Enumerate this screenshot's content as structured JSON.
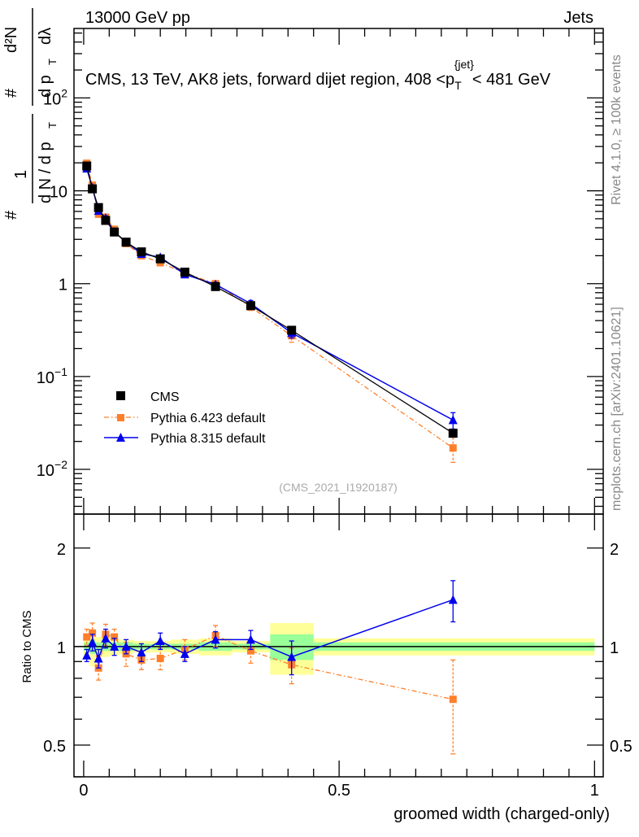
{
  "header": {
    "left": "13000 GeV pp",
    "right": "Jets"
  },
  "side_text": {
    "rivet": "Rivet 4.1.0, ≥ 100k events",
    "mcplots": "mcplots.cern.ch [arXiv:2401.10621]"
  },
  "watermark": "(CMS_2021_I1920187)",
  "colors": {
    "cms": "#000000",
    "py6": "#ff7f2a",
    "py8": "#0000ee",
    "band_inner": "#99ff99",
    "band_outer": "#ffff99"
  },
  "chart_data": [
    {
      "type": "line",
      "panel": "main",
      "title": "CMS, 13 TeV, AK8 jets, forward dijet region, 408 <p_T^{jet}< 481 GeV",
      "title_parts": {
        "main": "CMS, 13 TeV, AK8 jets, forward dijet region, 408 <p",
        "sub": "T",
        "sup": "{jet}",
        "tail": "< 481 GeV"
      },
      "ylabel": "1/(dN/dp_T) d²N/(dp_T dλ)",
      "ylabel_parts": {
        "num1": "1",
        "den1": "d N / d p",
        "num2": "d²N",
        "den2": "d p",
        "lam": "dλ",
        "T": "T",
        "hash": "#"
      },
      "yscale": "log",
      "ylim": [
        0.0033,
        560
      ],
      "xlim": [
        -0.019,
        1.017
      ],
      "yticks": [
        {
          "v": 0.01,
          "base": "10",
          "exp": "−2"
        },
        {
          "v": 0.1,
          "base": "10",
          "exp": "−1"
        },
        {
          "v": 1,
          "base": "1",
          "exp": ""
        },
        {
          "v": 10,
          "base": "10",
          "exp": ""
        },
        {
          "v": 100,
          "base": "10",
          "exp": "2"
        }
      ],
      "x": [
        0.006,
        0.017,
        0.029,
        0.043,
        0.06,
        0.083,
        0.113,
        0.15,
        0.198,
        0.258,
        0.327,
        0.407,
        0.723
      ],
      "series": [
        {
          "name": "CMS",
          "key": "cms",
          "values": [
            18.5,
            10.5,
            6.6,
            4.8,
            3.6,
            2.8,
            2.2,
            1.85,
            1.33,
            0.93,
            0.58,
            0.315,
            0.0245
          ]
        },
        {
          "name": "Pythia 6.423 default",
          "key": "py6",
          "values": [
            19.8,
            11.5,
            5.6,
            5.2,
            3.85,
            2.7,
            2.0,
            1.68,
            1.3,
            1.0,
            0.56,
            0.275,
            0.017
          ],
          "rel_err": [
            0.05,
            0.05,
            0.06,
            0.05,
            0.05,
            0.05,
            0.05,
            0.05,
            0.05,
            0.05,
            0.08,
            0.15,
            0.3
          ]
        },
        {
          "name": "Pythia 8.315 default",
          "key": "py8",
          "values": [
            17.4,
            10.8,
            6.1,
            5.1,
            3.6,
            2.8,
            2.1,
            1.92,
            1.26,
            0.98,
            0.61,
            0.295,
            0.034
          ],
          "rel_err": [
            0.04,
            0.04,
            0.05,
            0.05,
            0.05,
            0.05,
            0.05,
            0.05,
            0.05,
            0.05,
            0.08,
            0.12,
            0.2
          ]
        }
      ],
      "legend": {
        "placement": "center-left",
        "entries": [
          "CMS",
          "Pythia 6.423 default",
          "Pythia 8.315 default"
        ]
      }
    },
    {
      "type": "line",
      "panel": "ratio",
      "ylabel": "Ratio to CMS",
      "xlabel": "groomed width (charged-only)",
      "yscale": "log",
      "ylim": [
        0.4,
        2.54
      ],
      "yticks": [
        {
          "v": 0.5,
          "label": "0.5"
        },
        {
          "v": 1,
          "label": "1"
        },
        {
          "v": 2,
          "label": "2"
        }
      ],
      "xticks": [
        {
          "v": 0,
          "label": "0"
        },
        {
          "v": 0.5,
          "label": "0.5"
        },
        {
          "v": 1,
          "label": "1"
        }
      ],
      "bin_edges": [
        0,
        0.012,
        0.023,
        0.036,
        0.051,
        0.07,
        0.097,
        0.13,
        0.17,
        0.226,
        0.29,
        0.365,
        0.45,
        1.0
      ],
      "band_inner": [
        0.03,
        0.05,
        0.03,
        0.03,
        0.03,
        0.03,
        0.02,
        0.02,
        0.02,
        0.03,
        0.02,
        0.09,
        0.03
      ],
      "band_outer": [
        0.06,
        0.13,
        0.07,
        0.07,
        0.06,
        0.05,
        0.04,
        0.04,
        0.05,
        0.06,
        0.04,
        0.18,
        0.06
      ],
      "series": [
        {
          "name": "Pythia 6.423 default",
          "key": "py6",
          "values": [
            1.07,
            1.1,
            0.86,
            1.09,
            1.07,
            0.95,
            0.91,
            0.92,
            0.98,
            1.08,
            0.97,
            0.88,
            0.69
          ],
          "err": [
            0.06,
            0.08,
            0.07,
            0.08,
            0.06,
            0.08,
            0.06,
            0.07,
            0.07,
            0.08,
            0.08,
            0.11,
            0.22
          ]
        },
        {
          "name": "Pythia 8.315 default",
          "key": "py8",
          "values": [
            0.94,
            1.03,
            0.92,
            1.06,
            1.0,
            1.0,
            0.96,
            1.04,
            0.95,
            1.05,
            1.05,
            0.93,
            1.39
          ],
          "err": [
            0.04,
            0.06,
            0.06,
            0.07,
            0.06,
            0.05,
            0.06,
            0.06,
            0.05,
            0.06,
            0.07,
            0.11,
            0.2
          ]
        }
      ]
    }
  ]
}
